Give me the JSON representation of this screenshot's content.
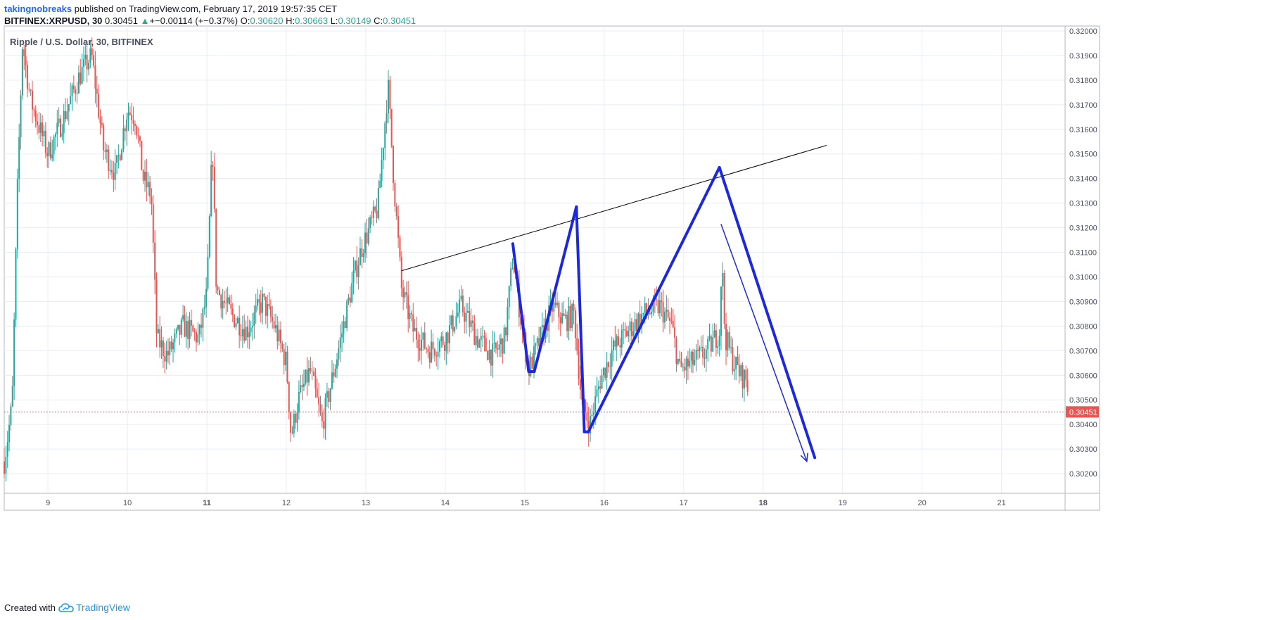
{
  "header": {
    "user": "takingnobreaks",
    "published_text": "published on TradingView.com, February 17, 2019 19:57:35 CET",
    "symbol": "BITFINEX:XRPUSD, 30",
    "last": "0.30451",
    "change_arrow": "▲",
    "change": "+−0.00114 (+−0.37%)",
    "o_label": "O:",
    "o_value": "0.30620",
    "h_label": "H:",
    "h_value": "0.30663",
    "l_label": "L:",
    "l_value": "0.30149",
    "c_label": "C:",
    "c_value": "0.30451"
  },
  "chart_title": "Ripple / U.S. Dollar, 30, BITFINEX",
  "footer": {
    "created_with": "Created with",
    "brand": "TradingView",
    "brand_icon": "tradingview-cloud-icon"
  },
  "colors": {
    "up": "#26a69a",
    "down": "#ef5350",
    "drawing": "#1c28e0",
    "trendline": "#000000",
    "price_line": "#ef5350",
    "grid": "#e8ecf3"
  },
  "chart_data": {
    "type": "candlestick",
    "title": "Ripple / U.S. Dollar, 30, BITFINEX",
    "x_ticks": [
      "9",
      "10",
      "11",
      "12",
      "13",
      "14",
      "15",
      "16",
      "17",
      "18",
      "19",
      "20",
      "21"
    ],
    "x_ticks_day": [
      9,
      10,
      11,
      12,
      13,
      14,
      15,
      16,
      17,
      18,
      19,
      20,
      21
    ],
    "xlim_day": [
      8.45,
      21.8
    ],
    "y_ticks": [
      "0.32000",
      "0.31900",
      "0.31800",
      "0.31700",
      "0.31600",
      "0.31500",
      "0.31400",
      "0.31300",
      "0.31200",
      "0.31100",
      "0.31000",
      "0.30900",
      "0.30800",
      "0.30700",
      "0.30600",
      "0.30500",
      "0.30400",
      "0.30300",
      "0.30200"
    ],
    "ylim": [
      0.3012,
      0.3202
    ],
    "last_price": 0.30451,
    "last_price_label": "0.30451",
    "price_path": [
      [
        8.45,
        0.3025
      ],
      [
        8.55,
        0.3048
      ],
      [
        8.62,
        0.314
      ],
      [
        8.68,
        0.3195
      ],
      [
        8.78,
        0.3172
      ],
      [
        8.9,
        0.316
      ],
      [
        9.0,
        0.315
      ],
      [
        9.2,
        0.3165
      ],
      [
        9.4,
        0.3182
      ],
      [
        9.55,
        0.319
      ],
      [
        9.7,
        0.3152
      ],
      [
        9.85,
        0.3142
      ],
      [
        10.0,
        0.3168
      ],
      [
        10.1,
        0.3165
      ],
      [
        10.2,
        0.314
      ],
      [
        10.3,
        0.3133
      ],
      [
        10.37,
        0.3075
      ],
      [
        10.5,
        0.3068
      ],
      [
        10.7,
        0.308
      ],
      [
        10.9,
        0.3075
      ],
      [
        11.0,
        0.3093
      ],
      [
        11.07,
        0.3155
      ],
      [
        11.12,
        0.3095
      ],
      [
        11.3,
        0.3085
      ],
      [
        11.5,
        0.3078
      ],
      [
        11.7,
        0.309
      ],
      [
        11.85,
        0.308
      ],
      [
        12.0,
        0.3065
      ],
      [
        12.06,
        0.3035
      ],
      [
        12.15,
        0.305
      ],
      [
        12.3,
        0.3062
      ],
      [
        12.45,
        0.304
      ],
      [
        12.6,
        0.3062
      ],
      [
        12.75,
        0.3085
      ],
      [
        12.85,
        0.31
      ],
      [
        12.95,
        0.3112
      ],
      [
        13.15,
        0.3128
      ],
      [
        13.28,
        0.3178
      ],
      [
        13.35,
        0.314
      ],
      [
        13.45,
        0.3095
      ],
      [
        13.6,
        0.3078
      ],
      [
        13.8,
        0.307
      ],
      [
        14.0,
        0.3075
      ],
      [
        14.2,
        0.3088
      ],
      [
        14.4,
        0.3075
      ],
      [
        14.6,
        0.3068
      ],
      [
        14.75,
        0.3075
      ],
      [
        14.85,
        0.3108
      ],
      [
        14.95,
        0.3083
      ],
      [
        15.05,
        0.3062
      ],
      [
        15.2,
        0.3075
      ],
      [
        15.35,
        0.3088
      ],
      [
        15.5,
        0.3082
      ],
      [
        15.62,
        0.3085
      ],
      [
        15.72,
        0.3048
      ],
      [
        15.82,
        0.304
      ],
      [
        15.95,
        0.3058
      ],
      [
        16.1,
        0.307
      ],
      [
        16.3,
        0.3078
      ],
      [
        16.5,
        0.3085
      ],
      [
        16.7,
        0.3088
      ],
      [
        16.85,
        0.308
      ],
      [
        16.95,
        0.3062
      ],
      [
        17.1,
        0.3065
      ],
      [
        17.3,
        0.307
      ],
      [
        17.45,
        0.3078
      ],
      [
        17.48,
        0.3108
      ],
      [
        17.52,
        0.3076
      ],
      [
        17.62,
        0.3066
      ],
      [
        17.72,
        0.306
      ],
      [
        17.8,
        0.3058
      ],
      [
        17.82,
        0.30451
      ]
    ],
    "drawings": {
      "trendline": [
        [
          13.45,
          0.31025
        ],
        [
          18.8,
          0.31535
        ]
      ],
      "pattern_lines": [
        [
          [
            14.85,
            0.31135
          ],
          [
            15.05,
            0.30615
          ]
        ],
        [
          [
            15.05,
            0.30615
          ],
          [
            15.12,
            0.30615
          ]
        ],
        [
          [
            15.12,
            0.30615
          ],
          [
            15.65,
            0.31285
          ]
        ],
        [
          [
            15.65,
            0.31285
          ],
          [
            15.75,
            0.3037
          ]
        ],
        [
          [
            15.75,
            0.3037
          ],
          [
            15.8,
            0.3037
          ]
        ],
        [
          [
            15.8,
            0.3037
          ],
          [
            17.45,
            0.31445
          ]
        ],
        [
          [
            17.45,
            0.31445
          ],
          [
            18.65,
            0.30265
          ]
        ]
      ],
      "arrow": [
        [
          17.47,
          0.31215
        ],
        [
          18.55,
          0.3025
        ]
      ]
    }
  }
}
